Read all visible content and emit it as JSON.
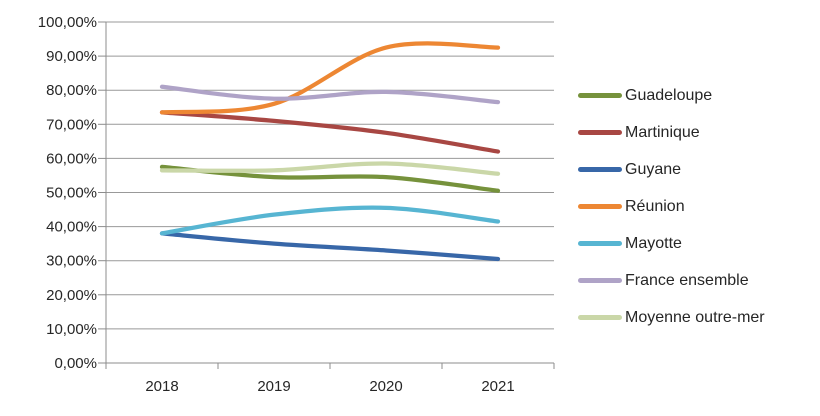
{
  "chart_data": {
    "type": "line",
    "title": "",
    "xlabel": "",
    "ylabel": "",
    "categories": [
      "2018",
      "2019",
      "2020",
      "2021"
    ],
    "ylim": [
      0,
      100
    ],
    "y_tick_step": 10,
    "y_tick_labels": [
      "0,00%",
      "10,00%",
      "20,00%",
      "30,00%",
      "40,00%",
      "50,00%",
      "60,00%",
      "70,00%",
      "80,00%",
      "90,00%",
      "100,00%"
    ],
    "grid": true,
    "smoothed_lines": true,
    "legend_position": "right",
    "series": [
      {
        "name": "Guadeloupe",
        "color": "#76923C",
        "values": [
          57.5,
          54.5,
          54.5,
          50.5
        ]
      },
      {
        "name": "Martinique",
        "color": "#A84743",
        "values": [
          73.5,
          71.0,
          67.5,
          62.0
        ]
      },
      {
        "name": "Guyane",
        "color": "#3867A8",
        "values": [
          38.0,
          35.0,
          33.0,
          30.5
        ]
      },
      {
        "name": "Réunion",
        "color": "#ED8733",
        "values": [
          73.5,
          76.0,
          92.5,
          92.5
        ]
      },
      {
        "name": "Mayotte",
        "color": "#57B5D2",
        "values": [
          38.0,
          43.5,
          45.5,
          41.5
        ]
      },
      {
        "name": "France ensemble",
        "color": "#AFA3C7",
        "values": [
          81.0,
          77.5,
          79.5,
          76.5
        ]
      },
      {
        "name": "Moyenne outre-mer",
        "color": "#CAD7A8",
        "values": [
          56.5,
          56.5,
          58.5,
          55.5
        ]
      }
    ],
    "colors": {
      "gridline": "#999999",
      "axis": "#8C8C8C",
      "tick_text": "#262626",
      "background": "#FFFFFF"
    }
  }
}
